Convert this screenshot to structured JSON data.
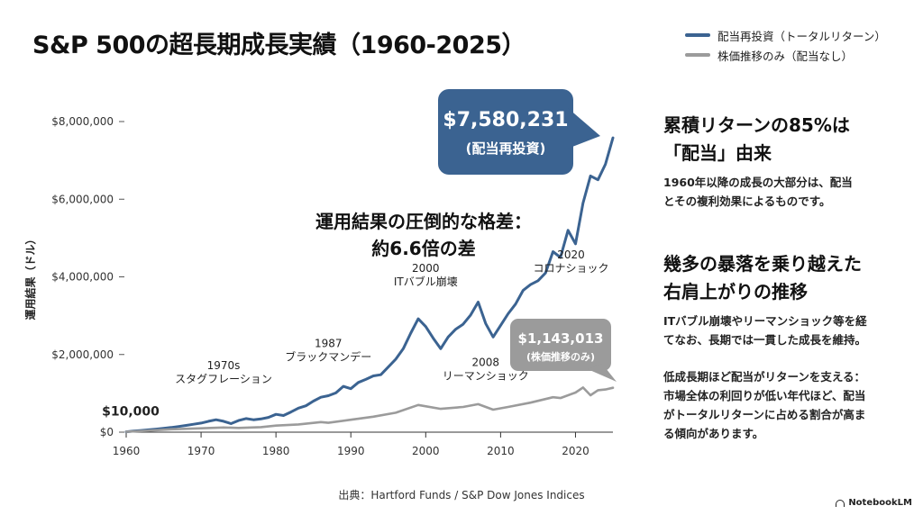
{
  "title": "S&P 500の超長期成長実績（1960-2025）",
  "legend": [
    {
      "label": "配当再投資（トータルリターン）",
      "color": "#3b6391"
    },
    {
      "label": "株価推移のみ（配当なし）",
      "color": "#9b9b9b"
    }
  ],
  "chart_data": {
    "type": "line",
    "ylabel": "運用結果（ドル）",
    "xlim": [
      1960,
      2025
    ],
    "ylim": [
      0,
      8000000
    ],
    "x_ticks": [
      1960,
      1970,
      1980,
      1990,
      2000,
      2010,
      2020
    ],
    "y_ticks": [
      {
        "value": 0,
        "label": "$0"
      },
      {
        "value": 2000000,
        "label": "$2,000,000"
      },
      {
        "value": 4000000,
        "label": "$4,000,000"
      },
      {
        "value": 6000000,
        "label": "$6,000,000"
      },
      {
        "value": 8000000,
        "label": "$8,000,000"
      }
    ],
    "series": [
      {
        "name": "配当再投資（トータルリターン）",
        "color": "#3b6391",
        "points": [
          [
            1960,
            10000
          ],
          [
            1961,
            30000
          ],
          [
            1962,
            45000
          ],
          [
            1963,
            60000
          ],
          [
            1964,
            80000
          ],
          [
            1965,
            100000
          ],
          [
            1966,
            120000
          ],
          [
            1967,
            145000
          ],
          [
            1968,
            175000
          ],
          [
            1969,
            205000
          ],
          [
            1970,
            235000
          ],
          [
            1971,
            280000
          ],
          [
            1972,
            320000
          ],
          [
            1973,
            280000
          ],
          [
            1974,
            220000
          ],
          [
            1975,
            300000
          ],
          [
            1976,
            350000
          ],
          [
            1977,
            320000
          ],
          [
            1978,
            340000
          ],
          [
            1979,
            380000
          ],
          [
            1980,
            460000
          ],
          [
            1981,
            430000
          ],
          [
            1982,
            520000
          ],
          [
            1983,
            620000
          ],
          [
            1984,
            680000
          ],
          [
            1985,
            800000
          ],
          [
            1986,
            900000
          ],
          [
            1987,
            940000
          ],
          [
            1988,
            1010000
          ],
          [
            1989,
            1180000
          ],
          [
            1990,
            1120000
          ],
          [
            1991,
            1280000
          ],
          [
            1992,
            1360000
          ],
          [
            1993,
            1450000
          ],
          [
            1994,
            1480000
          ],
          [
            1995,
            1680000
          ],
          [
            1996,
            1880000
          ],
          [
            1997,
            2150000
          ],
          [
            1998,
            2550000
          ],
          [
            1999,
            2920000
          ],
          [
            2000,
            2720000
          ],
          [
            2001,
            2420000
          ],
          [
            2002,
            2150000
          ],
          [
            2003,
            2450000
          ],
          [
            2004,
            2650000
          ],
          [
            2005,
            2780000
          ],
          [
            2006,
            3020000
          ],
          [
            2007,
            3350000
          ],
          [
            2008,
            2800000
          ],
          [
            2009,
            2450000
          ],
          [
            2010,
            2750000
          ],
          [
            2011,
            3050000
          ],
          [
            2012,
            3300000
          ],
          [
            2013,
            3650000
          ],
          [
            2014,
            3800000
          ],
          [
            2015,
            3900000
          ],
          [
            2016,
            4100000
          ],
          [
            2017,
            4650000
          ],
          [
            2018,
            4500000
          ],
          [
            2019,
            5200000
          ],
          [
            2020,
            4850000
          ],
          [
            2021,
            5900000
          ],
          [
            2022,
            6600000
          ],
          [
            2023,
            6500000
          ],
          [
            2024,
            6900000
          ],
          [
            2025,
            7580231
          ]
        ]
      },
      {
        "name": "株価推移のみ（配当なし）",
        "color": "#9b9b9b",
        "points": [
          [
            1960,
            10000
          ],
          [
            1963,
            40000
          ],
          [
            1966,
            75000
          ],
          [
            1970,
            100000
          ],
          [
            1973,
            120000
          ],
          [
            1975,
            110000
          ],
          [
            1978,
            130000
          ],
          [
            1980,
            170000
          ],
          [
            1983,
            200000
          ],
          [
            1986,
            260000
          ],
          [
            1987,
            240000
          ],
          [
            1990,
            320000
          ],
          [
            1993,
            400000
          ],
          [
            1996,
            500000
          ],
          [
            1999,
            700000
          ],
          [
            2002,
            600000
          ],
          [
            2005,
            650000
          ],
          [
            2007,
            720000
          ],
          [
            2009,
            580000
          ],
          [
            2011,
            650000
          ],
          [
            2014,
            760000
          ],
          [
            2017,
            900000
          ],
          [
            2018,
            880000
          ],
          [
            2020,
            1020000
          ],
          [
            2021,
            1150000
          ],
          [
            2022,
            950000
          ],
          [
            2023,
            1080000
          ],
          [
            2024,
            1100000
          ],
          [
            2025,
            1143013
          ]
        ]
      }
    ],
    "annotations": [
      {
        "text": "$10,000",
        "x": 1960,
        "y": 10000
      },
      {
        "text": "1970s\nスタグフレーション",
        "x": 1973,
        "y": 280000
      },
      {
        "text": "1987\nブラックマンデー",
        "x": 1987,
        "y": 940000
      },
      {
        "text": "2000\nITバブル崩壊",
        "x": 2000,
        "y": 2920000
      },
      {
        "text": "2008\nリーマンショック",
        "x": 2008,
        "y": 2450000
      },
      {
        "text": "2020\nコロナショック",
        "x": 2020,
        "y": 4850000
      }
    ],
    "callouts": [
      {
        "value": "$7,580,231",
        "label": "(配当再投資)",
        "color": "#3b6391",
        "x": 2025,
        "y": 7580231
      },
      {
        "value": "$1,143,013",
        "label": "(株価推移のみ)",
        "color": "#9b9b9b",
        "x": 2025,
        "y": 1143013
      }
    ],
    "center_text": [
      "運用結果の圧倒的な格差：",
      "約6.6倍の差"
    ]
  },
  "right_panel": {
    "heading1": [
      "累積リターンの85%は",
      "「配当」由来"
    ],
    "para1": [
      "1960年以降の成長の大部分は、配当",
      "とその複利効果によるものです。"
    ],
    "heading2": [
      "幾多の暴落を乗り越えた",
      "右肩上がりの推移"
    ],
    "para2": [
      "ITバブル崩壊やリーマンショック等を経",
      "てなお、長期では一貫した成長を維持。"
    ],
    "para3": [
      "低成長期ほど配当がリターンを支える：",
      "市場全体の利回りが低い年代ほど、配当",
      "がトータルリターンに占める割合が高ま",
      "る傾向があります。"
    ]
  },
  "source": "出典：Hartford Funds / S&P Dow Jones Indices",
  "brand": "NotebookLM"
}
